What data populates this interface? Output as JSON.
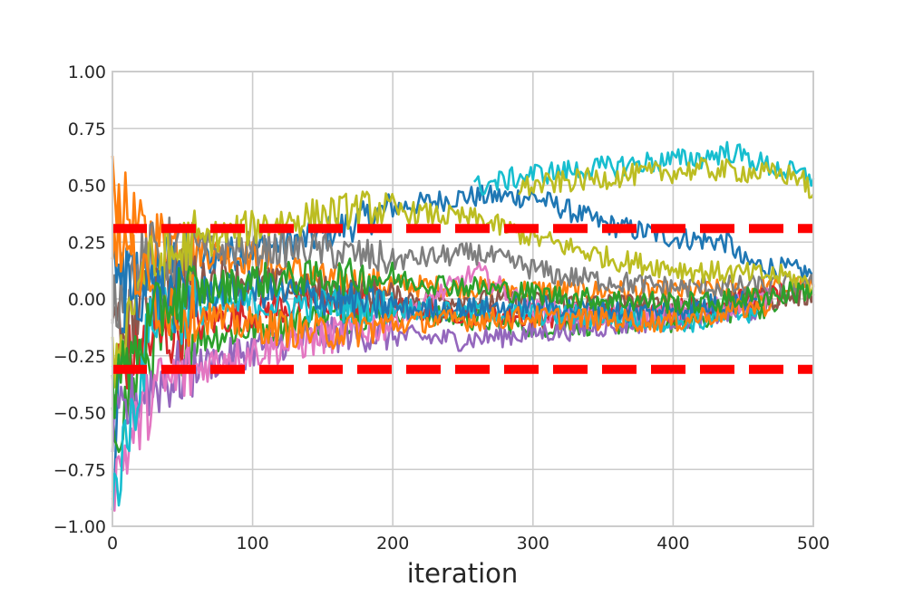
{
  "chart_data": {
    "type": "line",
    "title": "",
    "xlabel": "iteration",
    "ylabel": "",
    "xlim": [
      0,
      500
    ],
    "ylim": [
      -1.0,
      1.0
    ],
    "grid": true,
    "legend": "none",
    "x_ticks": [
      "0",
      "100",
      "200",
      "300",
      "400",
      "500"
    ],
    "y_ticks": [
      "−1.00",
      "−0.75",
      "−0.50",
      "−0.25",
      "0.00",
      "0.25",
      "0.50",
      "0.75",
      "1.00"
    ],
    "threshold_lines": [
      {
        "y": 0.31,
        "color": "#ff0000",
        "style": "dashed"
      },
      {
        "y": -0.31,
        "color": "#ff0000",
        "style": "dashed"
      }
    ],
    "series": [
      {
        "color": "#1f77b4",
        "start": [
          0,
          -0.9
        ],
        "points": [
          [
            10,
            0.1
          ],
          [
            50,
            0.15
          ],
          [
            100,
            0.22
          ],
          [
            150,
            0.28
          ],
          [
            200,
            0.4
          ],
          [
            250,
            0.45
          ],
          [
            300,
            0.45
          ],
          [
            350,
            0.33
          ],
          [
            400,
            0.27
          ],
          [
            440,
            0.25
          ],
          [
            450,
            0.16
          ],
          [
            500,
            0.11
          ]
        ]
      },
      {
        "color": "#ff7f0e",
        "start": [
          0,
          0.5
        ],
        "points": [
          [
            20,
            0.28
          ],
          [
            60,
            0.22
          ],
          [
            100,
            0.18
          ],
          [
            150,
            0.08
          ],
          [
            200,
            0.06
          ],
          [
            300,
            0.04
          ],
          [
            400,
            0.03
          ],
          [
            500,
            0.05
          ]
        ]
      },
      {
        "color": "#2ca02c",
        "start": [
          0,
          -0.6
        ],
        "points": [
          [
            30,
            -0.2
          ],
          [
            80,
            -0.15
          ],
          [
            130,
            -0.1
          ],
          [
            200,
            -0.05
          ],
          [
            300,
            -0.12
          ],
          [
            400,
            -0.1
          ],
          [
            480,
            -0.02
          ]
        ]
      },
      {
        "color": "#d62728",
        "start": [
          0,
          -0.3
        ],
        "points": [
          [
            30,
            -0.18
          ],
          [
            80,
            -0.08
          ],
          [
            150,
            0.0
          ],
          [
            220,
            -0.05
          ],
          [
            300,
            -0.08
          ],
          [
            400,
            -0.05
          ],
          [
            480,
            0.02
          ]
        ]
      },
      {
        "color": "#9467bd",
        "start": [
          0,
          -0.6
        ],
        "points": [
          [
            20,
            -0.4
          ],
          [
            60,
            -0.3
          ],
          [
            110,
            -0.2
          ],
          [
            170,
            -0.15
          ],
          [
            250,
            -0.18
          ],
          [
            350,
            -0.12
          ],
          [
            460,
            -0.05
          ]
        ]
      },
      {
        "color": "#8c564b",
        "start": [
          0,
          -0.2
        ],
        "points": [
          [
            30,
            0.05
          ],
          [
            80,
            0.1
          ],
          [
            140,
            0.03
          ],
          [
            220,
            0.0
          ],
          [
            320,
            -0.02
          ],
          [
            420,
            -0.03
          ],
          [
            500,
            0.02
          ]
        ]
      },
      {
        "color": "#e377c2",
        "start": [
          0,
          -0.8
        ],
        "points": [
          [
            30,
            -0.4
          ],
          [
            80,
            -0.25
          ],
          [
            130,
            -0.2
          ],
          [
            200,
            -0.1
          ],
          [
            260,
            0.12
          ],
          [
            300,
            -0.05
          ],
          [
            380,
            -0.08
          ],
          [
            470,
            0.0
          ]
        ]
      },
      {
        "color": "#7f7f7f",
        "start": [
          0,
          0.0
        ],
        "points": [
          [
            30,
            0.2
          ],
          [
            80,
            0.22
          ],
          [
            140,
            0.22
          ],
          [
            200,
            0.17
          ],
          [
            260,
            0.2
          ],
          [
            320,
            0.1
          ],
          [
            400,
            0.05
          ],
          [
            500,
            0.06
          ]
        ]
      },
      {
        "color": "#bcbd22",
        "start": [
          0,
          -0.3
        ],
        "points": [
          [
            20,
            0.1
          ],
          [
            60,
            0.25
          ],
          [
            110,
            0.33
          ],
          [
            180,
            0.4
          ],
          [
            260,
            0.35
          ],
          [
            300,
            0.27
          ],
          [
            360,
            0.17
          ],
          [
            420,
            0.12
          ],
          [
            480,
            0.1
          ],
          [
            500,
            0.06
          ]
        ]
      },
      {
        "color": "#17becf",
        "start": [
          0,
          -0.9
        ],
        "points": [
          [
            30,
            -0.05
          ],
          [
            100,
            -0.02
          ],
          [
            180,
            -0.03
          ],
          [
            250,
            -0.05
          ],
          [
            350,
            -0.08
          ],
          [
            420,
            -0.1
          ],
          [
            460,
            -0.05
          ]
        ]
      },
      {
        "color": "#17becf",
        "start": [
          258,
          0.49
        ],
        "points": [
          [
            300,
            0.55
          ],
          [
            340,
            0.57
          ],
          [
            380,
            0.6
          ],
          [
            420,
            0.62
          ],
          [
            440,
            0.65
          ],
          [
            470,
            0.58
          ],
          [
            500,
            0.53
          ]
        ]
      },
      {
        "color": "#bcbd22",
        "start": [
          290,
          0.49
        ],
        "points": [
          [
            330,
            0.52
          ],
          [
            380,
            0.55
          ],
          [
            420,
            0.57
          ],
          [
            450,
            0.56
          ],
          [
            490,
            0.54
          ],
          [
            500,
            0.46
          ]
        ]
      },
      {
        "color": "#1f77b4",
        "start": [
          0,
          0.1
        ],
        "points": [
          [
            40,
            0.0
          ],
          [
            90,
            0.05
          ],
          [
            160,
            0.0
          ],
          [
            220,
            -0.05
          ],
          [
            300,
            -0.03
          ],
          [
            380,
            -0.06
          ],
          [
            460,
            0.0
          ]
        ]
      },
      {
        "color": "#ff7f0e",
        "start": [
          0,
          0.3
        ],
        "points": [
          [
            30,
            0.0
          ],
          [
            80,
            -0.1
          ],
          [
            150,
            -0.15
          ],
          [
            220,
            -0.1
          ],
          [
            300,
            -0.08
          ],
          [
            400,
            -0.1
          ],
          [
            470,
            -0.02
          ]
        ]
      },
      {
        "color": "#2ca02c",
        "start": [
          0,
          -0.4
        ],
        "points": [
          [
            40,
            0.0
          ],
          [
            100,
            0.08
          ],
          [
            180,
            0.1
          ],
          [
            260,
            0.05
          ],
          [
            340,
            0.0
          ],
          [
            420,
            -0.02
          ],
          [
            500,
            0.04
          ]
        ]
      }
    ]
  }
}
